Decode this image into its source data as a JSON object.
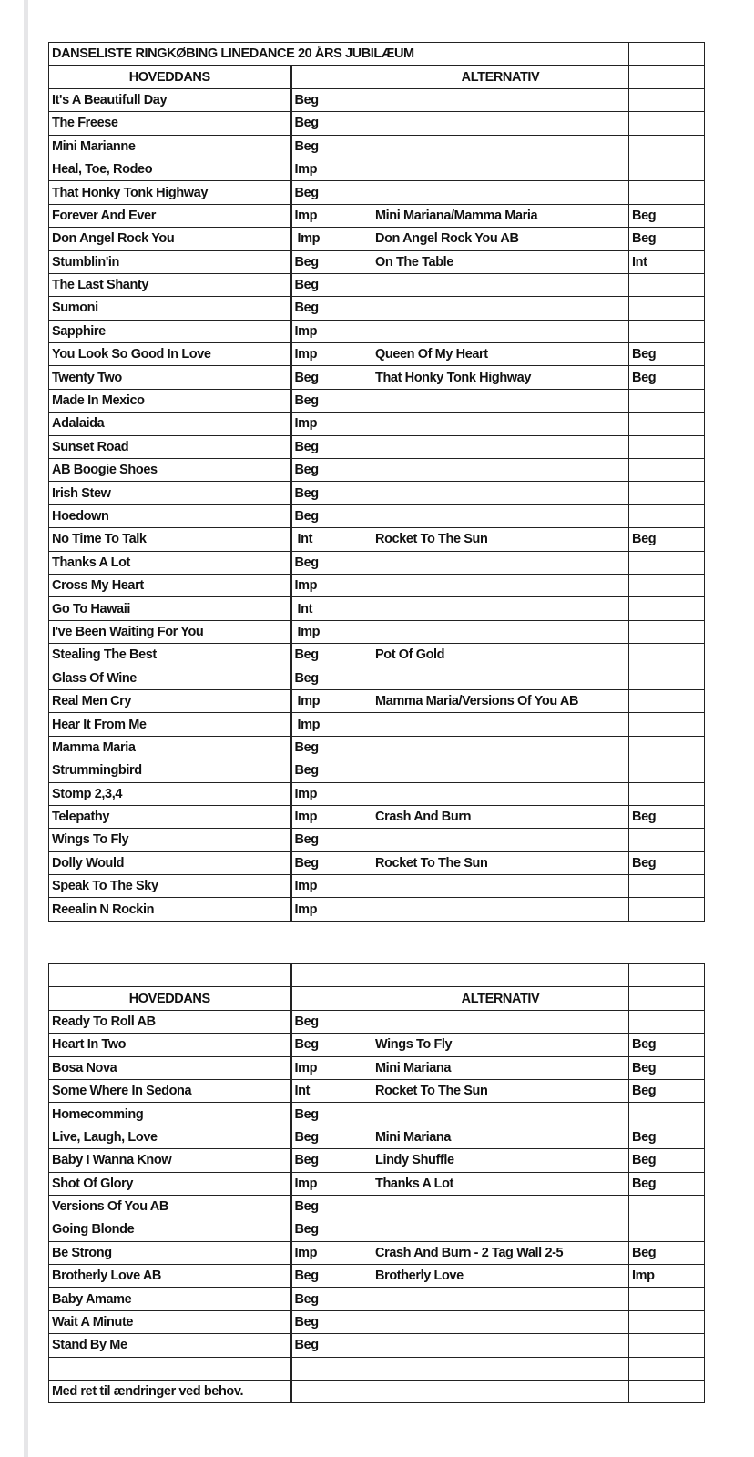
{
  "title": "DANSELISTE RINGKØBING LINEDANCE 20 ÅRS JUBILÆUM",
  "header": {
    "main": "HOVEDDANS",
    "alt": "ALTERNATIV"
  },
  "table1": [
    [
      "It's A Beautifull Day",
      "Beg",
      "",
      ""
    ],
    [
      "The Freese",
      "Beg",
      "",
      ""
    ],
    [
      "Mini Marianne",
      "Beg",
      "",
      ""
    ],
    [
      "Heal, Toe, Rodeo",
      "Imp",
      "",
      ""
    ],
    [
      "That Honky Tonk Highway",
      "Beg",
      "",
      ""
    ],
    [
      "Forever And Ever",
      "Imp",
      "Mini Mariana/Mamma Maria",
      "Beg"
    ],
    [
      "Don Angel Rock You",
      " Imp",
      "Don Angel Rock You  AB",
      "Beg"
    ],
    [
      "Stumblin'in",
      "Beg",
      "On The Table",
      "Int"
    ],
    [
      "The Last Shanty",
      "Beg",
      "",
      ""
    ],
    [
      "Sumoni",
      "Beg",
      "",
      ""
    ],
    [
      "Sapphire",
      "Imp",
      "",
      ""
    ],
    [
      "You Look So Good In Love",
      "Imp",
      "Queen Of My Heart",
      "Beg"
    ],
    [
      "Twenty Two",
      "Beg",
      "That Honky Tonk Highway",
      "Beg"
    ],
    [
      "Made In Mexico",
      "Beg",
      "",
      ""
    ],
    [
      "Adalaida",
      "Imp",
      "",
      ""
    ],
    [
      "Sunset Road",
      "Beg",
      "",
      ""
    ],
    [
      "AB Boogie Shoes",
      "Beg",
      "",
      ""
    ],
    [
      "Irish Stew",
      "Beg",
      "",
      ""
    ],
    [
      "Hoedown",
      "Beg",
      "",
      ""
    ],
    [
      "No Time To Talk",
      " Int",
      "Rocket To The Sun",
      "Beg"
    ],
    [
      "Thanks A Lot",
      "Beg",
      "",
      ""
    ],
    [
      "Cross My Heart",
      "Imp",
      "",
      ""
    ],
    [
      "Go To Hawaii",
      " Int",
      "",
      ""
    ],
    [
      "I've Been Waiting For You",
      " Imp",
      "",
      ""
    ],
    [
      "Stealing The Best",
      "Beg",
      "Pot Of Gold",
      ""
    ],
    [
      "Glass Of Wine",
      "Beg",
      "",
      ""
    ],
    [
      "Real Men Cry",
      " Imp",
      "Mamma Maria/Versions Of You AB",
      ""
    ],
    [
      "Hear It From Me",
      " Imp",
      "",
      ""
    ],
    [
      "Mamma Maria",
      "Beg",
      "",
      ""
    ],
    [
      "Strummingbird",
      "Beg",
      "",
      ""
    ],
    [
      "Stomp 2,3,4",
      "Imp",
      "",
      ""
    ],
    [
      "Telepathy",
      "Imp",
      "Crash And Burn",
      "Beg"
    ],
    [
      "Wings To Fly",
      "Beg",
      "",
      ""
    ],
    [
      "Dolly Would",
      "Beg",
      "Rocket To The Sun",
      "Beg"
    ],
    [
      "Speak To The Sky",
      "Imp",
      "",
      ""
    ],
    [
      "Reealin N Rockin",
      "Imp",
      "",
      ""
    ]
  ],
  "table2": [
    [
      "Ready To Roll  AB",
      "Beg",
      "",
      ""
    ],
    [
      "Heart In Two",
      "Beg",
      "Wings To Fly",
      "Beg"
    ],
    [
      "Bosa Nova",
      "Imp",
      "Mini Mariana",
      "Beg"
    ],
    [
      "Some Where In Sedona",
      "Int",
      "Rocket To The Sun",
      "Beg"
    ],
    [
      "Homecomming",
      "Beg",
      "",
      ""
    ],
    [
      "Live, Laugh, Love",
      "Beg",
      "Mini Mariana",
      "Beg"
    ],
    [
      "Baby I Wanna Know",
      "Beg",
      "Lindy Shuffle",
      "Beg"
    ],
    [
      "Shot Of Glory",
      "Imp",
      "Thanks  A Lot",
      "Beg"
    ],
    [
      "Versions Of You AB",
      "Beg",
      "",
      ""
    ],
    [
      "Going Blonde",
      "Beg",
      "",
      ""
    ],
    [
      "Be Strong",
      "Imp",
      "Crash And Burn - 2 Tag Wall 2-5",
      "Beg"
    ],
    [
      "Brotherly Love AB",
      "Beg",
      "Brotherly Love",
      "Imp"
    ],
    [
      "Baby Amame",
      "Beg",
      "",
      ""
    ],
    [
      "Wait A Minute",
      "Beg",
      "",
      ""
    ],
    [
      "Stand By Me",
      "Beg",
      "",
      ""
    ]
  ],
  "footer_note": "Med ret til ændringer ved behov."
}
